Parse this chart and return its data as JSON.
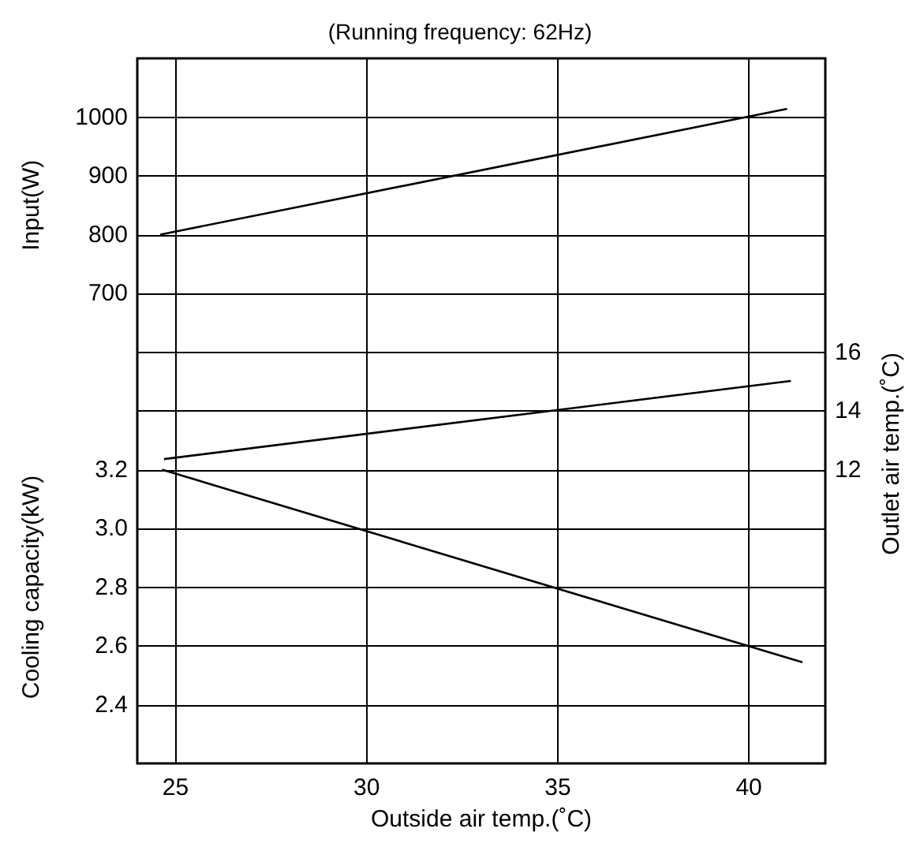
{
  "chart_data": {
    "type": "line",
    "title": "(Running frequency: 62Hz)",
    "xlabel": "Outside air temp.(˚C)",
    "ylabel": "Input(W)",
    "y2label": "Outlet air temp.(˚C)",
    "y3label": "Cooling capacity(kW)",
    "xlim": [
      24,
      42
    ],
    "xticks": [
      25,
      30,
      35,
      40
    ],
    "ylim": [
      -100,
      1100
    ],
    "yticks": [
      700,
      800,
      900,
      1000
    ],
    "y2lim": [
      2,
      26
    ],
    "y2ticks": [
      12,
      14,
      16
    ],
    "y3lim": [
      2.2,
      4.6
    ],
    "y3ticks": [
      2.4,
      2.6,
      2.8,
      {
        "value": 3,
        "label": "3.0"
      },
      3.2
    ],
    "grid": true,
    "marker": "none",
    "line_style": "solid",
    "series": [
      {
        "color": "#000000",
        "x": [
          24.6,
          41.0
        ],
        "values": [
          800,
          1014
        ]
      },
      {
        "color": "#000000",
        "axis": "y2",
        "x": [
          24.7,
          41.1
        ],
        "values": [
          12.36,
          15.02
        ]
      },
      {
        "color": "#000000",
        "axis": "y3",
        "x": [
          24.65,
          41.4
        ],
        "values": [
          3.2,
          2.544
        ]
      }
    ]
  }
}
